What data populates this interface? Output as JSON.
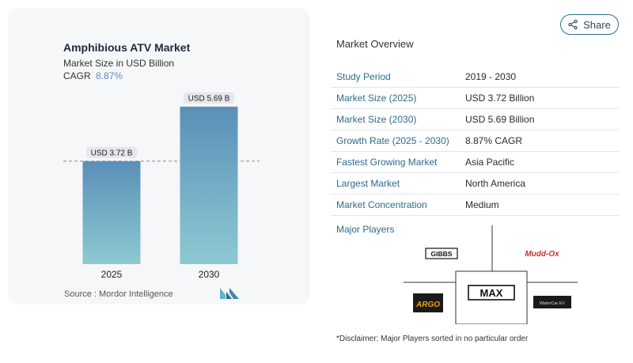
{
  "chart_data": {
    "type": "bar",
    "title": "Amphibious ATV  Market",
    "subtitle": "Market Size in USD Billion",
    "cagr_label": "CAGR",
    "cagr_value": "8.87%",
    "categories": [
      "2025",
      "2030"
    ],
    "values": [
      3.72,
      5.69
    ],
    "data_labels": [
      "USD 3.72 B",
      "USD 5.69 B"
    ],
    "ylim": [
      0,
      6.4
    ],
    "grid": false,
    "reference_line_at": 3.72,
    "bar_color_top": "#5b8fb8",
    "bar_color_bottom": "#8ec9d3"
  },
  "source": "Source :  Mordor Intelligence",
  "share": {
    "label": "Share",
    "icon": "share-icon"
  },
  "overview": {
    "title": "Market Overview",
    "rows": [
      {
        "label": "Study Period",
        "value": "2019 - 2030"
      },
      {
        "label": "Market Size (2025)",
        "value": "USD 3.72 Billion"
      },
      {
        "label": "Market Size (2030)",
        "value": "USD 5.69 Billion"
      },
      {
        "label": "Growth Rate (2025 - 2030)",
        "value": "8.87% CAGR"
      },
      {
        "label": "Fastest Growing Market",
        "value": "Asia Pacific"
      },
      {
        "label": "Largest Market",
        "value": "North America"
      },
      {
        "label": "Market Concentration",
        "value": "Medium"
      }
    ]
  },
  "players": {
    "title": "Major Players",
    "logos": [
      "GIBBS",
      "Mudd-Ox",
      "MAX",
      "ARGO",
      "WaterCar EV"
    ]
  },
  "disclaimer": "*Disclaimer: Major Players sorted in no particular order",
  "colors": {
    "accent": "#2d6a8e",
    "card_bg": "#f6f7f9"
  }
}
